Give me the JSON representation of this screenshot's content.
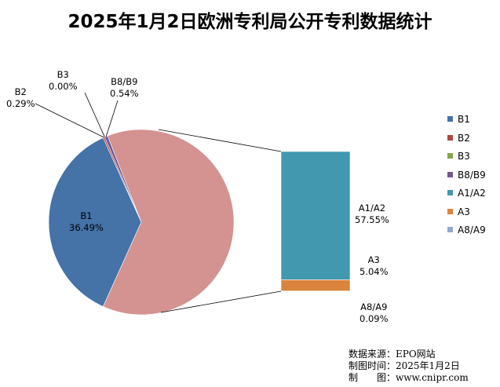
{
  "chart_data": {
    "type": "pie",
    "title": "2025年1月2日欧洲专利局公开专利数据统计",
    "categories": [
      "B1",
      "B2",
      "B3",
      "B8/B9",
      "A1/A2",
      "A3",
      "A8/A9"
    ],
    "values": [
      36.49,
      0.29,
      0.0,
      0.54,
      57.55,
      5.04,
      0.09
    ],
    "value_labels": [
      "36.49%",
      "0.29%",
      "0.00%",
      "0.54%",
      "57.55%",
      "5.04%",
      "0.09%"
    ],
    "colors": [
      "#4572a7",
      "#aa4643",
      "#89a54e",
      "#71588f",
      "#4198af",
      "#db843d",
      "#93a9cf"
    ],
    "secondary_plot": {
      "type": "bar-of-pie",
      "members": [
        "A1/A2",
        "A3",
        "A8/A9"
      ],
      "main_pie_color": "#d49290"
    },
    "legend": {
      "position": "right",
      "entries": [
        "B1",
        "B2",
        "B3",
        "B8/B9",
        "A1/A2",
        "A3",
        "A8/A9"
      ]
    }
  },
  "footer": {
    "source": "数据来源：EPO网站",
    "date": "制图时间：2025年1月2日",
    "maker": "制　　图：www.cnipr.com"
  }
}
